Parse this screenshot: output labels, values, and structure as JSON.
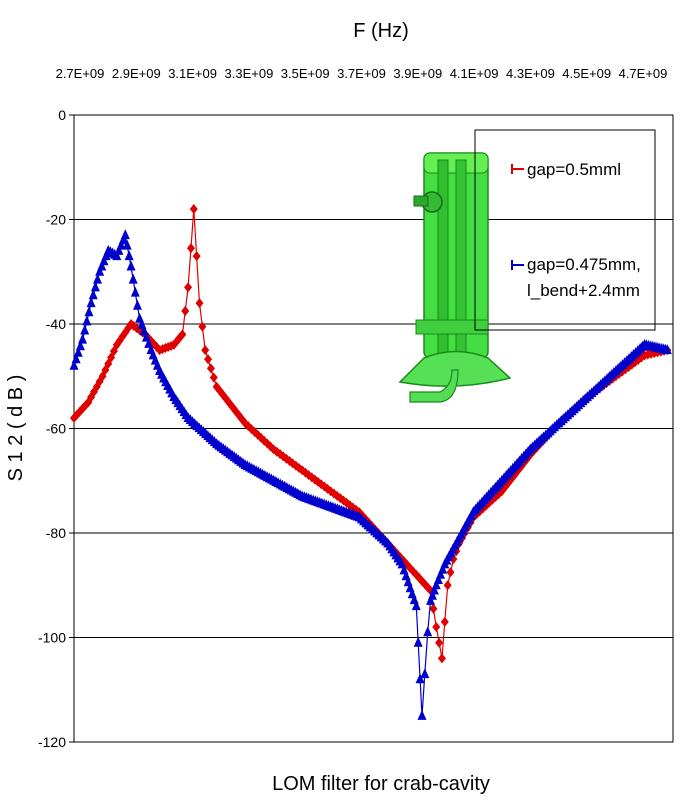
{
  "chart_data": {
    "type": "line",
    "title": "LOM filter for crab-cavity",
    "xlabel": "F (Hz)",
    "ylabel": "S 1 2 ( d B )",
    "xlim": [
      2700000000.0,
      4800000000.0
    ],
    "ylim": [
      -120,
      0
    ],
    "x_tick_labels": [
      "2.7E+09",
      "2.9E+09",
      "3.1E+09",
      "3.3E+09",
      "3.5E+09",
      "3.7E+09",
      "3.9E+09",
      "4.1E+09",
      "4.3E+09",
      "4.5E+09",
      "4.7E+09"
    ],
    "y_ticks": [
      0,
      -20,
      -40,
      -60,
      -80,
      -100,
      -120
    ],
    "grid": "horizontal",
    "legend_position": "top-right",
    "series": [
      {
        "name": "gap=0.5mml",
        "color": "#e00000",
        "marker": "diamond",
        "x": [
          2700000000.0,
          2750000000.0,
          2800000000.0,
          2850000000.0,
          2900000000.0,
          2950000000.0,
          3000000000.0,
          3050000000.0,
          3080000000.0,
          3100000000.0,
          3120000000.0,
          3140000000.0,
          3160000000.0,
          3200000000.0,
          3300000000.0,
          3400000000.0,
          3500000000.0,
          3600000000.0,
          3700000000.0,
          3800000000.0,
          3900000000.0,
          3950000000.0,
          3970000000.0,
          3990000000.0,
          4000000000.0,
          4010000000.0,
          4030000000.0,
          4050000000.0,
          4100000000.0,
          4200000000.0,
          4300000000.0,
          4400000000.0,
          4500000000.0,
          4600000000.0,
          4700000000.0,
          4780000000.0
        ],
        "y": [
          -58,
          -55,
          -50,
          -44,
          -40,
          -42,
          -45,
          -44,
          -42,
          -33,
          -18,
          -36,
          -45,
          -52,
          -59,
          -64,
          -68,
          -72,
          -76,
          -82,
          -88,
          -91,
          -98,
          -104,
          -97,
          -90,
          -85,
          -82,
          -77,
          -72,
          -65,
          -59,
          -54,
          -50,
          -46,
          -45
        ]
      },
      {
        "name": "gap=0.475mm,\nl_bend+2.4mm",
        "color": "#0000cc",
        "marker": "triangle",
        "x": [
          2700000000.0,
          2730000000.0,
          2760000000.0,
          2790000000.0,
          2820000000.0,
          2850000000.0,
          2880000000.0,
          2900000000.0,
          2930000000.0,
          2970000000.0,
          3000000000.0,
          3050000000.0,
          3100000000.0,
          3200000000.0,
          3300000000.0,
          3400000000.0,
          3500000000.0,
          3600000000.0,
          3700000000.0,
          3800000000.0,
          3850000000.0,
          3900000000.0,
          3920000000.0,
          3930000000.0,
          3940000000.0,
          3950000000.0,
          3970000000.0,
          4000000000.0,
          4050000000.0,
          4100000000.0,
          4200000000.0,
          4300000000.0,
          4400000000.0,
          4500000000.0,
          4600000000.0,
          4700000000.0,
          4780000000.0
        ],
        "y": [
          -48,
          -43,
          -36,
          -30,
          -26,
          -27,
          -23,
          -29,
          -39,
          -45,
          -49,
          -54,
          -58,
          -63,
          -67,
          -70,
          -73,
          -75,
          -77,
          -82,
          -86,
          -94,
          -115,
          -107,
          -99,
          -93,
          -90,
          -86,
          -81,
          -76,
          -70,
          -64,
          -59,
          -54,
          -49,
          -44,
          -45
        ]
      }
    ]
  }
}
